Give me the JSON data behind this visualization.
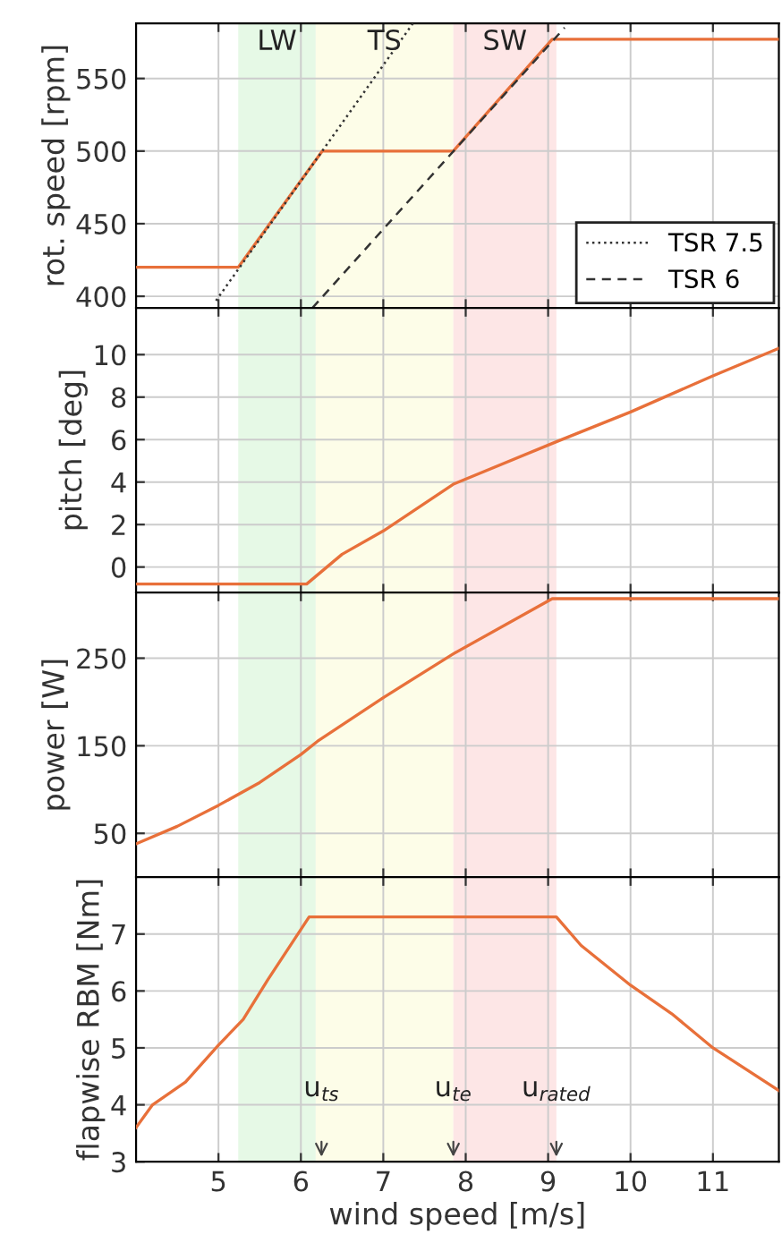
{
  "chart_data": [
    {
      "type": "line",
      "ylabel": "rot. speed [rpm]",
      "xlim": [
        4,
        11.8
      ],
      "xticks": [
        5,
        6,
        7,
        8,
        9,
        10,
        11
      ],
      "ylim": [
        392,
        588
      ],
      "yticks": [
        400,
        450,
        500,
        550
      ],
      "grid": true,
      "tick_labels": "y",
      "legend": "bottom right",
      "bands": [
        {
          "axis": "x",
          "from": 5.24,
          "to": 6.18,
          "label": "LW",
          "color": "#e6f9e6"
        },
        {
          "axis": "x",
          "from": 6.18,
          "to": 7.85,
          "label": "TS",
          "color": "#fdfde8"
        },
        {
          "axis": "x",
          "from": 7.85,
          "to": 9.1,
          "label": "SW",
          "color": "#fde6e6"
        }
      ],
      "series": [
        {
          "color": "#e8703a",
          "x": [
            4,
            5.24,
            6.26,
            7.85,
            9.05,
            11.8
          ],
          "values": [
            420,
            420,
            500,
            500,
            577,
            577
          ]
        },
        {
          "name": "TSR 7.5",
          "color": "#333333",
          "line_style": "dotted",
          "x": [
            4.97,
            7.36
          ],
          "values": [
            397,
            588
          ]
        },
        {
          "name": "TSR 6",
          "color": "#333333",
          "line_style": "dashed",
          "x": [
            6.14,
            9.2
          ],
          "values": [
            392,
            585
          ]
        }
      ]
    },
    {
      "type": "line",
      "ylabel": "pitch [deg]",
      "xlim": [
        4,
        11.8
      ],
      "xticks": [
        5,
        6,
        7,
        8,
        9,
        10,
        11
      ],
      "ylim": [
        -1.2,
        12.2
      ],
      "yticks": [
        0,
        2,
        4,
        6,
        8,
        10
      ],
      "grid": true,
      "tick_labels": "y",
      "bands": [
        {
          "axis": "x",
          "from": 5.24,
          "to": 6.18,
          "color": "#e6f9e6"
        },
        {
          "axis": "x",
          "from": 6.18,
          "to": 7.85,
          "color": "#fdfde8"
        },
        {
          "axis": "x",
          "from": 7.85,
          "to": 9.1,
          "color": "#fde6e6"
        }
      ],
      "series": [
        {
          "color": "#e8703a",
          "x": [
            4,
            6.07,
            6.5,
            7,
            7.85,
            9.1,
            10,
            11,
            11.8
          ],
          "values": [
            -0.8,
            -0.8,
            0.6,
            1.7,
            3.9,
            5.9,
            7.3,
            9.0,
            10.3
          ]
        }
      ]
    },
    {
      "type": "line",
      "ylabel": "power [W]",
      "xlim": [
        4,
        11.8
      ],
      "xticks": [
        5,
        6,
        7,
        8,
        9,
        10,
        11
      ],
      "ylim": [
        0,
        325
      ],
      "yticks": [
        50,
        150,
        250
      ],
      "grid": true,
      "tick_labels": "y",
      "bands": [
        {
          "axis": "x",
          "from": 5.24,
          "to": 6.18,
          "color": "#e6f9e6"
        },
        {
          "axis": "x",
          "from": 6.18,
          "to": 7.85,
          "color": "#fdfde8"
        },
        {
          "axis": "x",
          "from": 7.85,
          "to": 9.1,
          "color": "#fde6e6"
        }
      ],
      "series": [
        {
          "color": "#e8703a",
          "x": [
            4,
            4.5,
            5,
            5.5,
            6,
            6.2,
            7,
            7.85,
            9.05,
            11.8
          ],
          "values": [
            38,
            58,
            82,
            108,
            140,
            155,
            205,
            255,
            318,
            318
          ]
        }
      ]
    },
    {
      "type": "line",
      "xlabel": "wind speed [m/s]",
      "ylabel": "flapwise RBM [Nm]",
      "xlim": [
        4,
        11.8
      ],
      "xticks": [
        5,
        6,
        7,
        8,
        9,
        10,
        11
      ],
      "ylim": [
        3,
        8
      ],
      "yticks": [
        3,
        4,
        5,
        6,
        7
      ],
      "grid": true,
      "bands": [
        {
          "axis": "x",
          "from": 5.24,
          "to": 6.18,
          "color": "#e6f9e6"
        },
        {
          "axis": "x",
          "from": 6.18,
          "to": 7.85,
          "color": "#fdfde8"
        },
        {
          "axis": "x",
          "from": 7.85,
          "to": 9.1,
          "color": "#fde6e6"
        }
      ],
      "annotations": [
        {
          "text": "u$_{ts}$",
          "x": 6.25,
          "y": 3
        },
        {
          "text": "u$_{te}$",
          "x": 7.85,
          "y": 3
        },
        {
          "text": "u$_{rated}$",
          "x": 9.1,
          "y": 3
        }
      ],
      "series": [
        {
          "color": "#e8703a",
          "x": [
            4,
            4.2,
            4.6,
            5,
            5.3,
            5.6,
            6.1,
            9.1,
            9.4,
            10,
            10.5,
            11,
            11.8
          ],
          "values": [
            3.6,
            4.0,
            4.4,
            5.05,
            5.5,
            6.2,
            7.3,
            7.3,
            6.8,
            6.1,
            5.6,
            5.0,
            4.25
          ]
        }
      ]
    }
  ]
}
